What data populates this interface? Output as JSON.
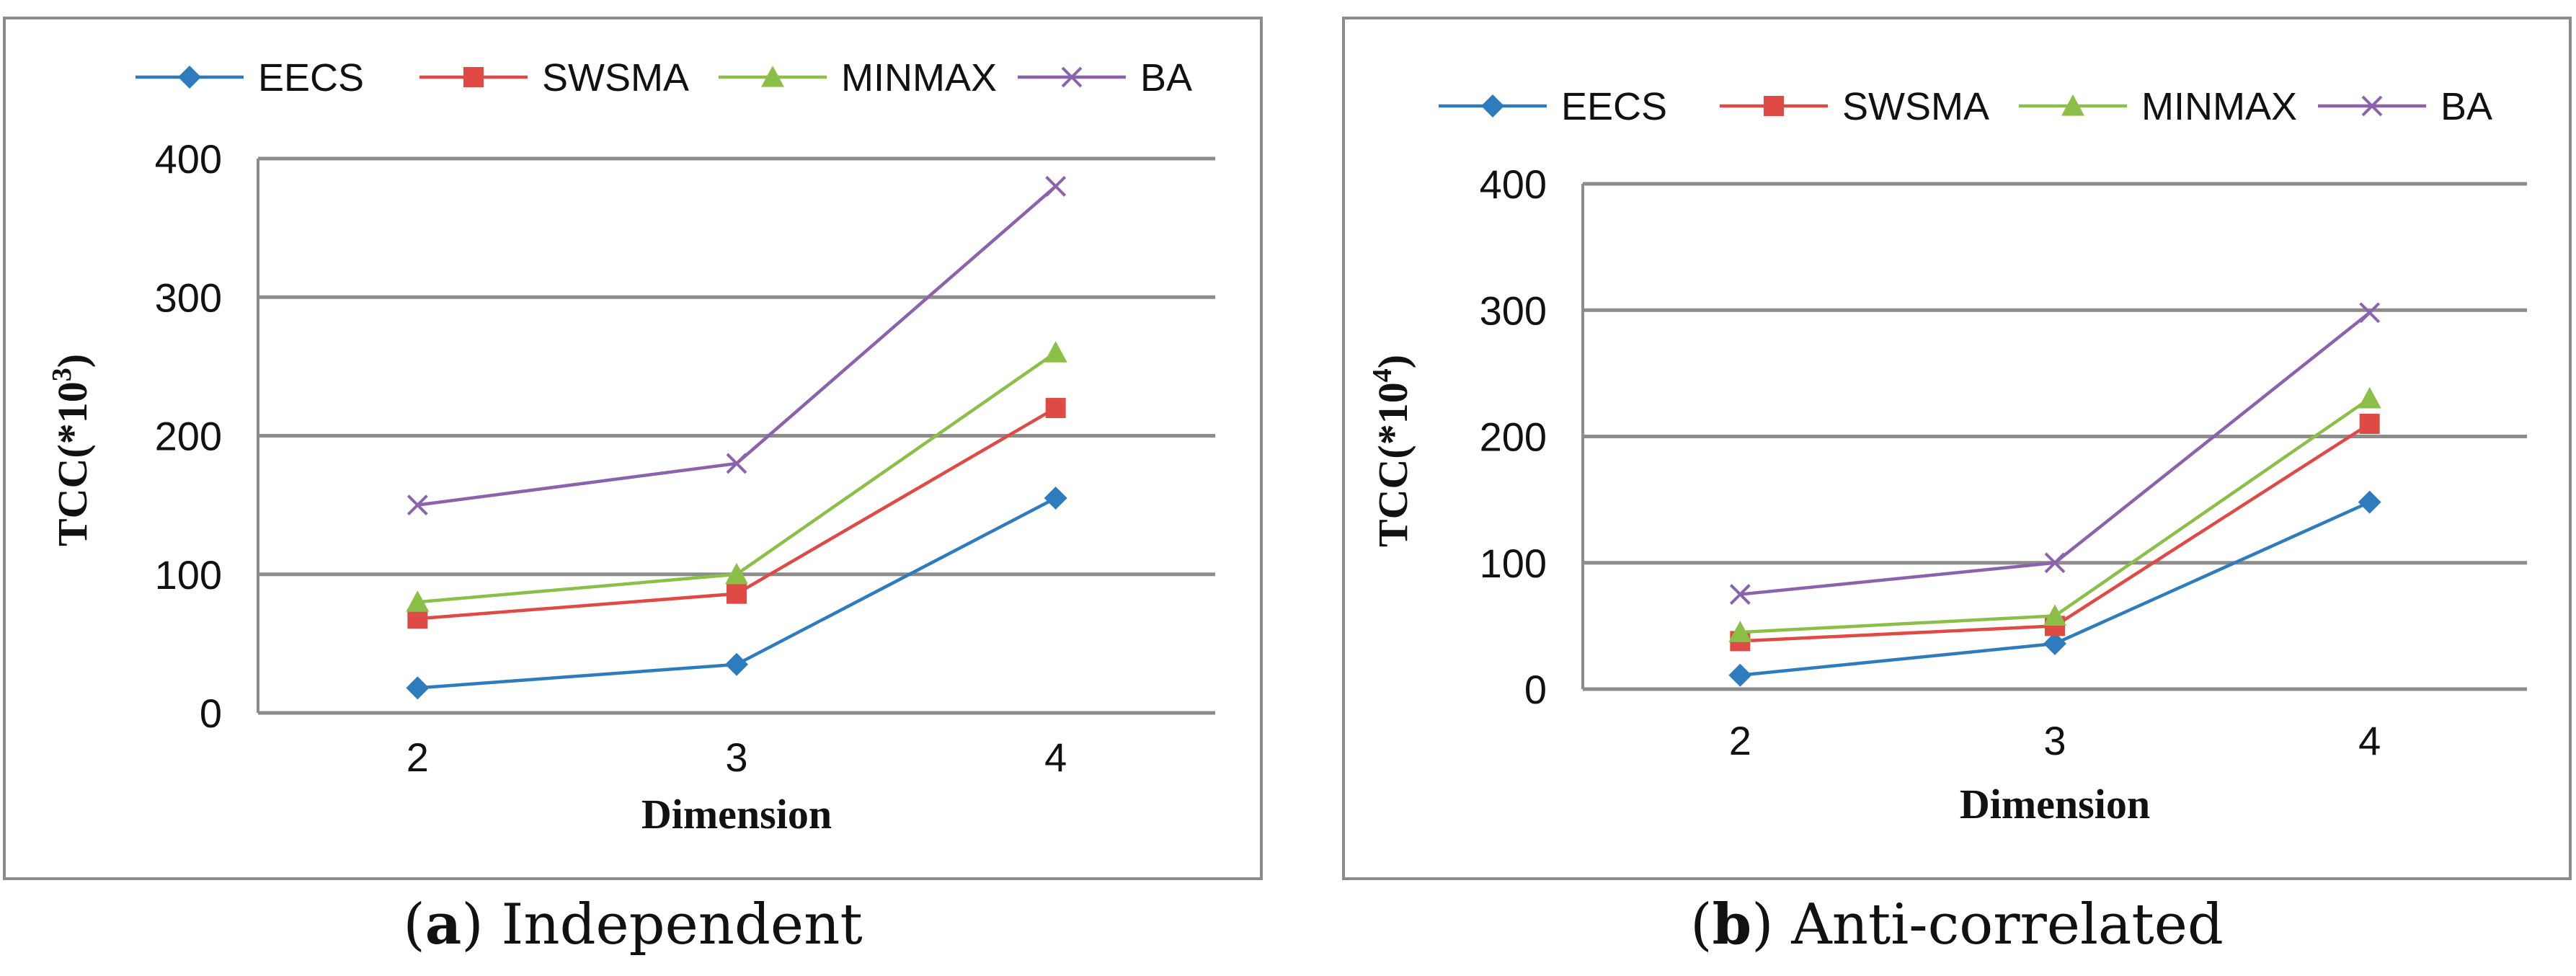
{
  "colors": {
    "EECS": "#2e7bbd",
    "SWSMA": "#e04a45",
    "MINMAX": "#8bbf48",
    "BA": "#8b63ad",
    "grid": "#8c8c8c",
    "frame": "#8c8c8c"
  },
  "chart_data": [
    {
      "type": "line",
      "caption": {
        "open": "(",
        "tag": "a",
        "close": ")",
        "text": "Independent"
      },
      "xlabel": "Dimension",
      "ylabel": {
        "base": "TCC(*10",
        "exp": "3",
        "close": ")"
      },
      "categories": [
        "2",
        "3",
        "4"
      ],
      "ylim": [
        0,
        400
      ],
      "yticks": [
        "0",
        "100",
        "200",
        "300",
        "400"
      ],
      "grid": true,
      "legend": "top",
      "series": [
        {
          "name": "EECS",
          "marker": "diamond",
          "values": [
            18,
            35,
            155
          ]
        },
        {
          "name": "SWSMA",
          "marker": "square",
          "values": [
            68,
            86,
            220
          ]
        },
        {
          "name": "MINMAX",
          "marker": "triangle",
          "values": [
            80,
            100,
            260
          ]
        },
        {
          "name": "BA",
          "marker": "x",
          "values": [
            150,
            180,
            380
          ]
        }
      ]
    },
    {
      "type": "line",
      "caption": {
        "open": "(",
        "tag": "b",
        "close": ")",
        "text": "Anti-correlated"
      },
      "xlabel": "Dimension",
      "ylabel": {
        "base": "TCC(*10",
        "exp": "4",
        "close": ")"
      },
      "categories": [
        "2",
        "3",
        "4"
      ],
      "ylim": [
        0,
        400
      ],
      "yticks": [
        "0",
        "100",
        "200",
        "300",
        "400"
      ],
      "grid": true,
      "legend": "top",
      "series": [
        {
          "name": "EECS",
          "marker": "diamond",
          "values": [
            11,
            36,
            148
          ]
        },
        {
          "name": "SWSMA",
          "marker": "square",
          "values": [
            38,
            50,
            210
          ]
        },
        {
          "name": "MINMAX",
          "marker": "triangle",
          "values": [
            45,
            58,
            230
          ]
        },
        {
          "name": "BA",
          "marker": "x",
          "values": [
            75,
            100,
            298
          ]
        }
      ]
    }
  ]
}
